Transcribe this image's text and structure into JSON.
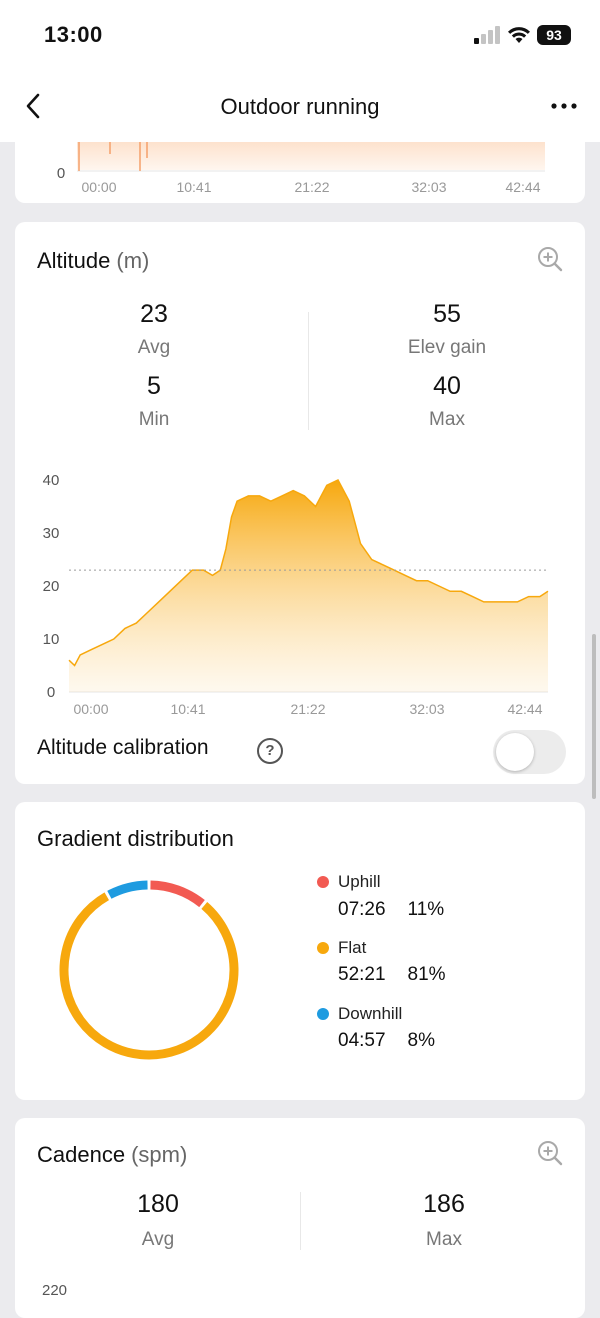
{
  "status_bar": {
    "time": "13:00",
    "battery": "93"
  },
  "nav": {
    "title": "Outdoor running"
  },
  "prev_chart": {
    "y_tick": "0",
    "x_ticks": [
      "00:00",
      "10:41",
      "21:22",
      "32:03",
      "42:44"
    ]
  },
  "altitude": {
    "title": "Altitude",
    "unit": "(m)",
    "stats": [
      {
        "value": "23",
        "label": "Avg"
      },
      {
        "value": "55",
        "label": "Elev gain"
      },
      {
        "value": "5",
        "label": "Min"
      },
      {
        "value": "40",
        "label": "Max"
      }
    ],
    "calibration_label": "Altitude calibration",
    "calibration_on": false
  },
  "chart_data": {
    "type": "area",
    "title": "",
    "xlabel": "",
    "ylabel": "",
    "x_ticks": [
      "00:00",
      "10:41",
      "21:22",
      "32:03",
      "42:44"
    ],
    "y_ticks": [
      "0",
      "10",
      "20",
      "30",
      "40"
    ],
    "ylim": [
      0,
      40
    ],
    "xlim_minutes": [
      0,
      42.73
    ],
    "average_line": 23,
    "color": "#f7a80d",
    "series": [
      {
        "x_minutes": [
          0,
          0.5,
          1,
          2,
          3,
          4,
          5,
          6,
          7,
          8,
          9,
          10,
          11,
          12,
          12.8,
          13.5,
          14,
          14.5,
          15,
          16,
          17,
          18,
          19,
          20,
          21,
          22,
          23,
          24,
          25,
          25.5,
          26,
          27,
          28,
          29,
          30,
          31,
          32,
          33,
          34,
          35,
          36,
          37,
          38,
          39,
          40,
          41,
          42,
          42.73
        ],
        "y": [
          6,
          5,
          7,
          8,
          9,
          10,
          12,
          13,
          15,
          17,
          19,
          21,
          23,
          23,
          22,
          23,
          27,
          33,
          36,
          37,
          37,
          36,
          37,
          38,
          37,
          35,
          39,
          40,
          36,
          32,
          28,
          25,
          24,
          23,
          22,
          21,
          21,
          20,
          19,
          19,
          18,
          17,
          17,
          17,
          17,
          18,
          18,
          19
        ]
      }
    ]
  },
  "gradient": {
    "title": "Gradient distribution",
    "colors": {
      "uphill": "#f25a52",
      "flat": "#f7a80d",
      "downhill": "#1e9be0"
    },
    "items": [
      {
        "name": "Uphill",
        "time": "07:26",
        "percent": "11%"
      },
      {
        "name": "Flat",
        "time": "52:21",
        "percent": "81%"
      },
      {
        "name": "Downhill",
        "time": "04:57",
        "percent": "8%"
      }
    ]
  },
  "cadence": {
    "title": "Cadence",
    "unit": "(spm)",
    "stats": [
      {
        "value": "180",
        "label": "Avg"
      },
      {
        "value": "186",
        "label": "Max"
      }
    ],
    "y_tick_top": "220"
  }
}
